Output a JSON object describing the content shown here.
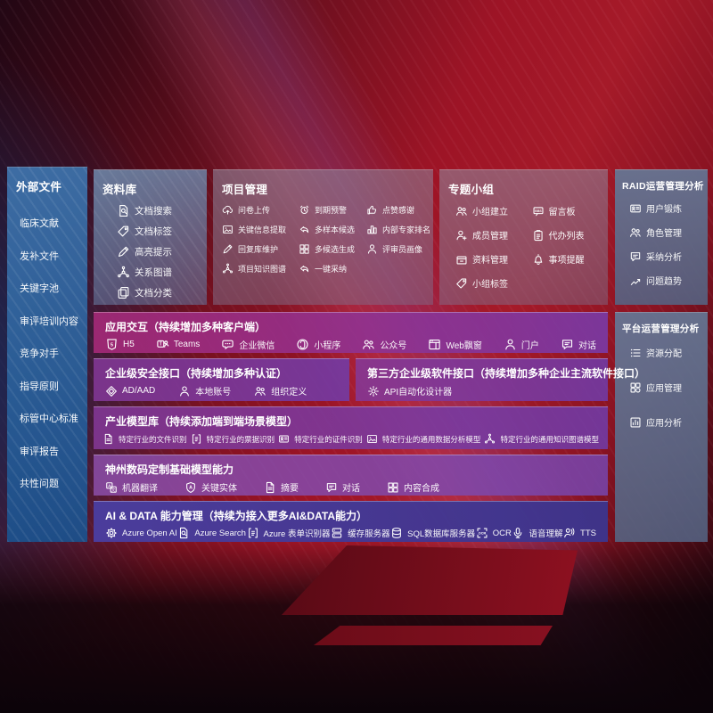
{
  "sidebar": {
    "title": "外部文件",
    "items": [
      {
        "label": "临床文献"
      },
      {
        "label": "发补文件"
      },
      {
        "label": "关键字池"
      },
      {
        "label": "审评培训内容"
      },
      {
        "label": "竞争对手"
      },
      {
        "label": "指导原则"
      },
      {
        "label": "标管中心标准"
      },
      {
        "label": "审评报告"
      },
      {
        "label": "共性问题"
      }
    ]
  },
  "panels": {
    "library": {
      "title": "资料库",
      "items": [
        {
          "label": "文档搜索",
          "icon": "doc-search"
        },
        {
          "label": "文档标签",
          "icon": "tag"
        },
        {
          "label": "高亮提示",
          "icon": "pencil"
        },
        {
          "label": "关系图谱",
          "icon": "graph"
        },
        {
          "label": "文档分类",
          "icon": "copy"
        }
      ]
    },
    "project": {
      "title": "项目管理",
      "items": [
        {
          "label": "问卷上传",
          "icon": "cloud-up"
        },
        {
          "label": "到期预警",
          "icon": "alarm"
        },
        {
          "label": "点赞感谢",
          "icon": "thumb"
        },
        {
          "label": "关键信息提取",
          "icon": "image"
        },
        {
          "label": "多样本候选",
          "icon": "reply"
        },
        {
          "label": "内部专家排名",
          "icon": "rank"
        },
        {
          "label": "回复库维护",
          "icon": "pencil"
        },
        {
          "label": "多候选生成",
          "icon": "grid"
        },
        {
          "label": "评审员画像",
          "icon": "person"
        },
        {
          "label": "项目知识图谱",
          "icon": "graph"
        },
        {
          "label": "一键采纳",
          "icon": "reply"
        }
      ]
    },
    "groups": {
      "title": "专题小组",
      "items": [
        {
          "label": "小组建立",
          "icon": "people"
        },
        {
          "label": "留言板",
          "icon": "bbs"
        },
        {
          "label": "成员管理",
          "icon": "person-plus"
        },
        {
          "label": "代办列表",
          "icon": "clipboard"
        },
        {
          "label": "资料管理",
          "icon": "box"
        },
        {
          "label": "事项提醒",
          "icon": "bell"
        },
        {
          "label": "小组标签",
          "icon": "tag"
        }
      ]
    },
    "raid": {
      "title": "RAID运营管理分析",
      "items": [
        {
          "label": "用户锻炼",
          "icon": "id-card"
        },
        {
          "label": "角色管理",
          "icon": "people"
        },
        {
          "label": "采纳分析",
          "icon": "chat"
        },
        {
          "label": "问题趋势",
          "icon": "trend"
        }
      ]
    },
    "platform": {
      "title": "平台运营管理分析",
      "items": [
        {
          "label": "资源分配",
          "icon": "list"
        },
        {
          "label": "应用管理",
          "icon": "apps"
        },
        {
          "label": "应用分析",
          "icon": "chart-doc"
        }
      ]
    }
  },
  "rows": {
    "interaction": {
      "title": "应用交互（持续增加多种客户端）",
      "items": [
        {
          "label": "H5",
          "icon": "h5"
        },
        {
          "label": "Teams",
          "icon": "teams"
        },
        {
          "label": "企业微信",
          "icon": "wechat"
        },
        {
          "label": "小程序",
          "icon": "mini"
        },
        {
          "label": "公众号",
          "icon": "people"
        },
        {
          "label": "Web飘窗",
          "icon": "window"
        },
        {
          "label": "门户",
          "icon": "person"
        },
        {
          "label": "对话",
          "icon": "chat"
        }
      ]
    },
    "security": {
      "title": "企业级安全接口（持续增加多种认证）",
      "items": [
        {
          "label": "AD/AAD",
          "icon": "diamond"
        },
        {
          "label": "本地账号",
          "icon": "person"
        },
        {
          "label": "组织定义",
          "icon": "people"
        }
      ]
    },
    "thirdparty": {
      "title": "第三方企业级软件接口（持续增加多种企业主流软件接口）",
      "items": [
        {
          "label": "API自动化设计器",
          "icon": "gear"
        }
      ]
    },
    "models": {
      "title": "产业模型库（持续添加端到端场景模型）",
      "items": [
        {
          "label": "特定行业的文件识别",
          "icon": "doc"
        },
        {
          "label": "特定行业的票据识别",
          "icon": "form"
        },
        {
          "label": "特定行业的证件识别",
          "icon": "id-card"
        },
        {
          "label": "特定行业的通用数据分析模型",
          "icon": "image"
        },
        {
          "label": "特定行业的通用知识图谱模型",
          "icon": "graph"
        }
      ]
    },
    "base_models": {
      "title": "神州数码定制基础模型能力",
      "items": [
        {
          "label": "机器翻译",
          "icon": "translate"
        },
        {
          "label": "关键实体",
          "icon": "shield-a"
        },
        {
          "label": "摘要",
          "icon": "doc"
        },
        {
          "label": "对话",
          "icon": "chat"
        },
        {
          "label": "内容合成",
          "icon": "grid"
        }
      ]
    },
    "ai_data": {
      "title": "AI & DATA 能力管理（持续为接入更多AI&DATA能力）",
      "items": [
        {
          "label": "Azure Open AI",
          "icon": "openai"
        },
        {
          "label": "Azure Search",
          "icon": "doc-search"
        },
        {
          "label": "Azure 表单识别器",
          "icon": "form"
        },
        {
          "label": "缓存服务器",
          "icon": "server"
        },
        {
          "label": "SQL数据库服务器",
          "icon": "db"
        },
        {
          "label": "OCR",
          "icon": "ocr"
        },
        {
          "label": "语音理解",
          "icon": "mic"
        },
        {
          "label": "TTS",
          "icon": "tts"
        }
      ]
    }
  },
  "colors": {
    "background_red": "#9d1426",
    "background_navy": "#1c3a66",
    "sidebar_blue": "#2f6aa8",
    "panel_gray": "#8c8ca4",
    "panel_slate": "#64769a",
    "row_magenta": "#a82a7a",
    "row_purple": "#8438a8",
    "row_indigo": "#4a3ea0",
    "text": "#ffffff"
  }
}
